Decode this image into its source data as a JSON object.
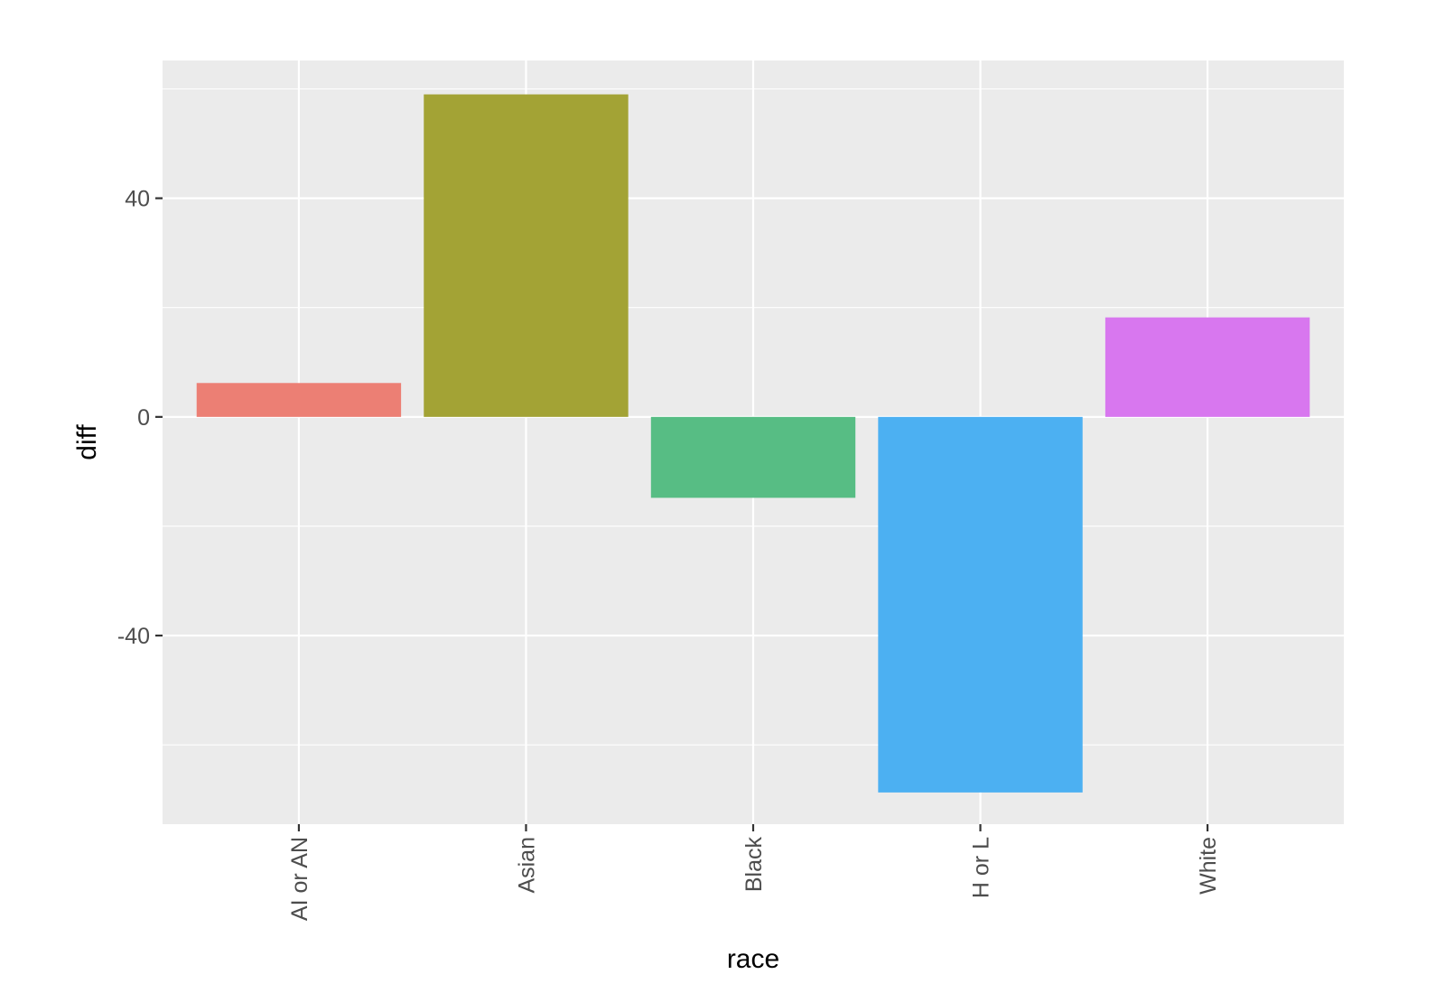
{
  "chart_data": {
    "type": "bar",
    "categories": [
      "AI or AN",
      "Asian",
      "Black",
      "H or L",
      "White"
    ],
    "values": [
      6.2,
      59,
      -14.8,
      -68.7,
      18.2
    ],
    "colors": [
      "#EC7F74",
      "#A3A335",
      "#57BD84",
      "#4CB0F2",
      "#D877EF"
    ],
    "xlabel": "race",
    "ylabel": "diff",
    "ylim": [
      -74.5,
      65.2
    ],
    "yticks": [
      -40,
      0,
      40
    ],
    "ytick_labels": [
      "-40",
      "0",
      "40"
    ],
    "grid": true,
    "panel_background": "#EBEBEB",
    "grid_color": "#FFFFFF"
  }
}
